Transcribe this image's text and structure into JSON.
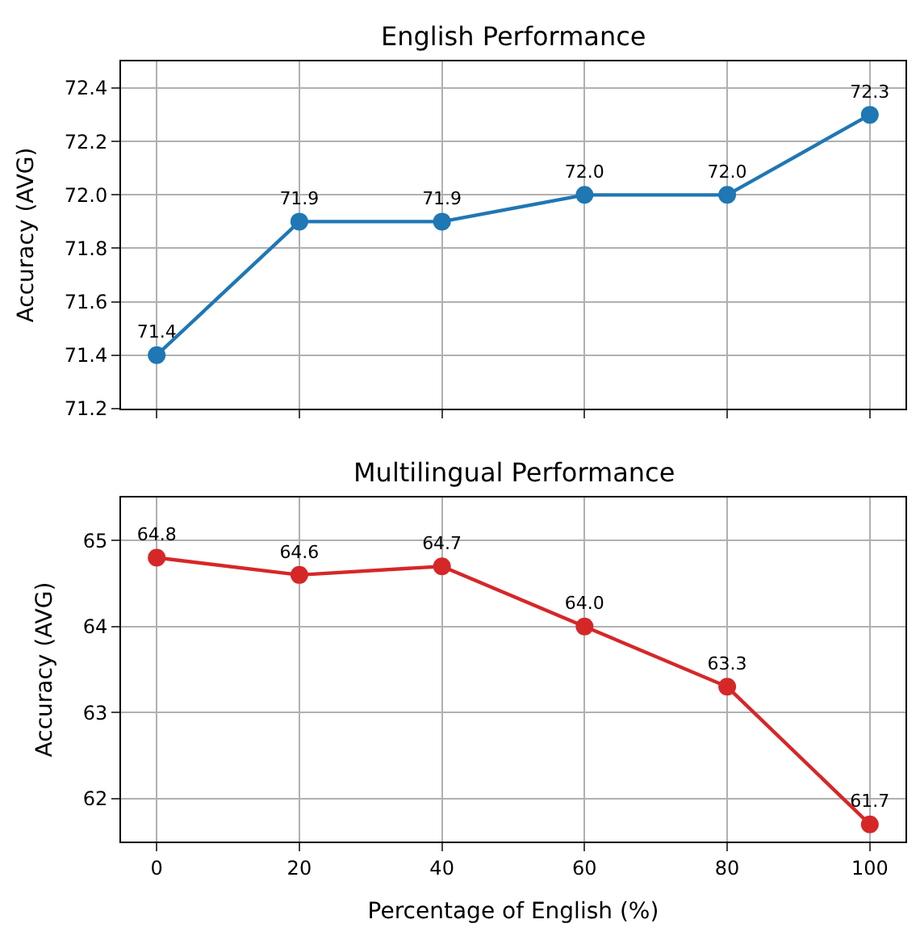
{
  "chart_data": [
    {
      "type": "line",
      "title": "English Performance",
      "ylabel": "Accuracy (AVG)",
      "x": [
        0,
        20,
        40,
        60,
        80,
        100
      ],
      "series": [
        {
          "color": "#1f77b4",
          "values": [
            71.4,
            71.9,
            71.9,
            72.0,
            72.0,
            72.3
          ],
          "value_labels": [
            "71.4",
            "71.9",
            "71.9",
            "72.0",
            "72.0",
            "72.3"
          ]
        }
      ],
      "xlim": [
        -5,
        105
      ],
      "xticks": [
        0,
        20,
        40,
        60,
        80,
        100
      ],
      "ylim": [
        71.2,
        72.5
      ],
      "yticks": [
        71.2,
        71.4,
        71.6,
        71.8,
        {
          "value": 72,
          "label": "72.0"
        },
        72.2,
        72.4
      ],
      "tick_labels": "y",
      "grid": true,
      "marker": "circle",
      "line_style": "solid"
    },
    {
      "type": "line",
      "title": "Multilingual Performance",
      "xlabel": "Percentage of English (%)",
      "ylabel": "Accuracy (AVG)",
      "x": [
        0,
        20,
        40,
        60,
        80,
        100
      ],
      "series": [
        {
          "color": "#d62728",
          "values": [
            64.8,
            64.6,
            64.7,
            64.0,
            63.3,
            61.7
          ],
          "value_labels": [
            "64.8",
            "64.6",
            "64.7",
            "64.0",
            "63.3",
            "61.7"
          ]
        }
      ],
      "xlim": [
        -5,
        105
      ],
      "xticks": [
        0,
        20,
        40,
        60,
        80,
        100
      ],
      "ylim": [
        61.5,
        65.5
      ],
      "yticks": [
        62,
        63,
        64,
        65
      ],
      "grid": true,
      "marker": "circle",
      "line_style": "solid"
    }
  ]
}
